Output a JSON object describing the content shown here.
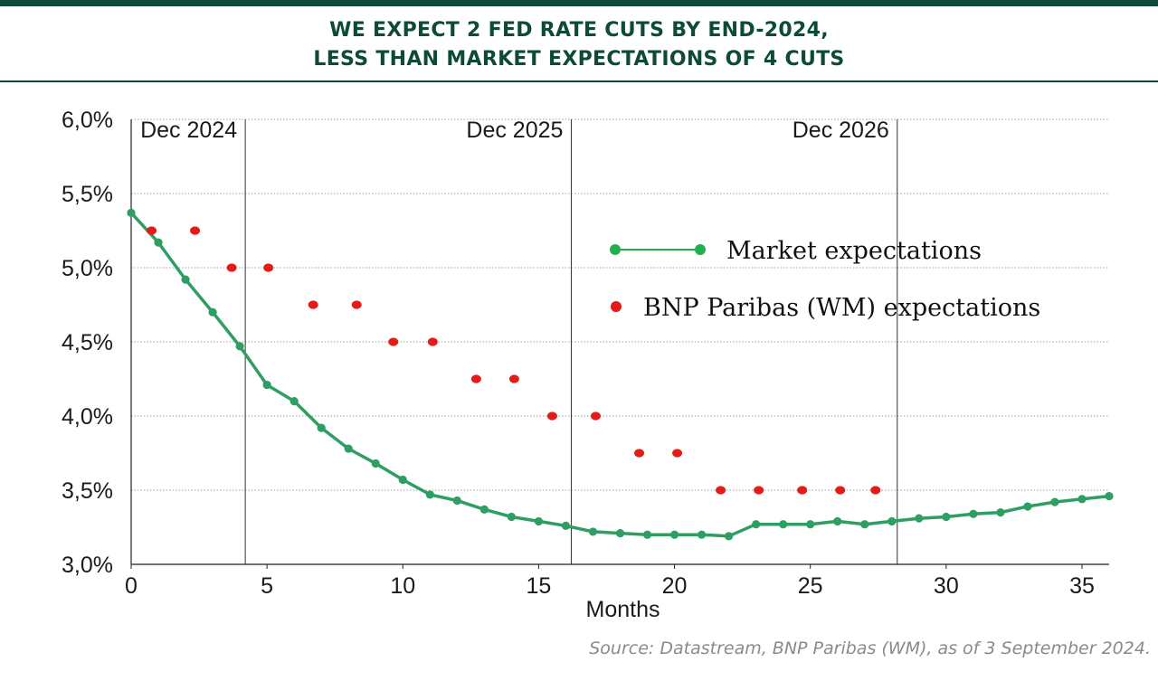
{
  "title": {
    "line1": "WE EXPECT 2 FED RATE CUTS BY END-2024,",
    "line2": "LESS THAN MARKET EXPECTATIONS OF 4 CUTS"
  },
  "source": "Source: Datastream, BNP Paribas (WM), as of 3 September 2024.",
  "colors": {
    "brand": "#0d4a3a",
    "market": "#2e9e63",
    "market_legend": "#22b04e",
    "bnp": "#e41b17",
    "grid": "#a0a0a0"
  },
  "chart_data": {
    "type": "line",
    "xlabel": "Months",
    "ylabel": "",
    "xlim": [
      0,
      36
    ],
    "ylim": [
      3.0,
      6.0
    ],
    "x_ticks": [
      0,
      5,
      10,
      15,
      20,
      25,
      30,
      35
    ],
    "x_tick_labels": [
      "0",
      "5",
      "10",
      "15",
      "20",
      "25",
      "30",
      "35"
    ],
    "y_ticks": [
      3.0,
      3.5,
      4.0,
      4.5,
      5.0,
      5.5,
      6.0
    ],
    "y_tick_labels": [
      "3,0%",
      "3,5%",
      "4,0%",
      "4,5%",
      "5,0%",
      "5,5%",
      "6,0%"
    ],
    "grid": "horizontal dotted",
    "legend_position": "center-right",
    "markers": [
      {
        "x": 4.2,
        "label": "Dec 2024"
      },
      {
        "x": 16.2,
        "label": "Dec 2025"
      },
      {
        "x": 28.2,
        "label": "Dec 2026"
      }
    ],
    "series": [
      {
        "name": "Market expectations",
        "style": "line-with-markers",
        "x": [
          0,
          1,
          2,
          3,
          4,
          5,
          6,
          7,
          8,
          9,
          10,
          11,
          12,
          13,
          14,
          15,
          16,
          17,
          18,
          19,
          20,
          21,
          22,
          23,
          24,
          25,
          26,
          27,
          28,
          29,
          30,
          31,
          32,
          33,
          34,
          35,
          36
        ],
        "values": [
          5.37,
          5.17,
          4.92,
          4.7,
          4.47,
          4.21,
          4.1,
          3.92,
          3.78,
          3.68,
          3.57,
          3.47,
          3.43,
          3.37,
          3.32,
          3.29,
          3.26,
          3.22,
          3.21,
          3.2,
          3.2,
          3.2,
          3.19,
          3.27,
          3.27,
          3.27,
          3.29,
          3.27,
          3.29,
          3.31,
          3.32,
          3.34,
          3.35,
          3.39,
          3.42,
          3.44,
          3.46
        ]
      },
      {
        "name": "BNP Paribas (WM) expectations",
        "style": "dots",
        "x": [
          0.75,
          2.35,
          3.7,
          5.05,
          6.7,
          8.3,
          9.65,
          11.1,
          12.7,
          14.1,
          15.5,
          17.1,
          18.7,
          20.1,
          21.7,
          23.1,
          24.7,
          26.1,
          27.4
        ],
        "values": [
          5.25,
          5.25,
          5.0,
          5.0,
          4.75,
          4.75,
          4.5,
          4.5,
          4.25,
          4.25,
          4.0,
          4.0,
          3.75,
          3.75,
          3.5,
          3.5,
          3.5,
          3.5,
          3.5
        ]
      }
    ]
  }
}
